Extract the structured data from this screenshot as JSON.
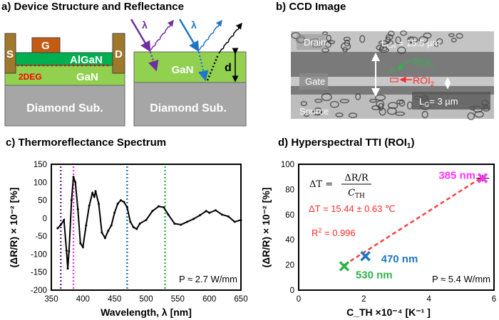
{
  "panels": {
    "a": {
      "title": "a) Device Structure and Reflectance",
      "source": "S",
      "gate": "G",
      "drain": "D",
      "algan": "AlGaN",
      "twodeg": "2DEG",
      "gan": "GaN",
      "substrate": "Diamond Sub.",
      "gan_right": "GaN",
      "substrate_right": "Diamond Sub.",
      "thickness": "d",
      "lambda": "λ"
    },
    "b": {
      "title": "b) CCD Image",
      "drain": "Drain",
      "gate": "Gate",
      "source": "Source",
      "lch_main": "L",
      "lch_sub": "CH",
      "lch_value": " = 15.5 µm",
      "roi1_main": "ROI",
      "roi1_sub": "1",
      "roi2_main": "ROI",
      "roi2_sub": "2",
      "lg_main": "L",
      "lg_sub": "G",
      "lg_value": "= 3 µm"
    },
    "c": {
      "title": "c) Thermoreflectance Spectrum",
      "annotation": "P ≈ 2.7 W/mm"
    },
    "d": {
      "title_main": "d) Hyperspectral TTI (ROI",
      "title_sub": "1",
      "title_end": ")",
      "eq_lhs": "ΔT =",
      "eq_num": "ΔR/R",
      "eq_den_main": "C",
      "eq_den_sub": "TH",
      "fit_result": "ΔT = 15.44 ± 0.63 ℃",
      "r2_main": "R",
      "r2_sup": "2",
      "r2_value": " = 0.996",
      "annotation": "P ≈ 5.4 W/mm"
    }
  },
  "colors": {
    "purple": "#7030a0",
    "magenta": "#ff33ff",
    "blue": "#1f77c4",
    "green": "#2db34a",
    "red": "#ff2a2a",
    "gan": "#92d050",
    "algan": "#00b050",
    "metal": "#a0782a",
    "gate": "#c55a11",
    "substrate": "#a6a6a6"
  },
  "chart_data": [
    {
      "type": "line",
      "title": "c) Thermoreflectance Spectrum",
      "xlabel": "Wavelength, λ [nm]",
      "ylabel": "(ΔR/R) × 10⁻² [%]",
      "xlim": [
        350,
        650
      ],
      "ylim": [
        -200,
        150
      ],
      "xticks": [
        "350",
        "400",
        "450",
        "500",
        "550",
        "600",
        "650"
      ],
      "yticks": [
        "150",
        "100",
        "50",
        "0",
        "-50",
        "-100",
        "-150",
        "-200"
      ],
      "series": [
        {
          "name": "spectrum",
          "x": [
            360,
            365,
            370,
            374,
            376,
            378,
            382,
            385,
            388,
            392,
            396,
            400,
            405,
            410,
            415,
            418,
            420,
            425,
            430,
            435,
            440,
            445,
            450,
            455,
            460,
            465,
            470,
            475,
            480,
            485,
            490,
            500,
            510,
            520,
            528,
            535,
            545,
            555,
            565,
            575,
            585,
            595,
            600,
            610,
            620,
            630,
            640,
            650
          ],
          "y": [
            -28,
            -18,
            -5,
            -90,
            -140,
            -92,
            50,
            115,
            100,
            25,
            -70,
            -80,
            -20,
            35,
            70,
            60,
            75,
            40,
            -40,
            -55,
            -35,
            -20,
            15,
            40,
            50,
            45,
            30,
            -10,
            -25,
            -30,
            -15,
            -5,
            20,
            33,
            30,
            10,
            -15,
            -18,
            -10,
            -2,
            8,
            20,
            15,
            22,
            10,
            5,
            -10,
            -5
          ]
        }
      ],
      "vlines": [
        {
          "x": 365,
          "color": "purple"
        },
        {
          "x": 385,
          "color": "magenta"
        },
        {
          "x": 470,
          "color": "blue"
        },
        {
          "x": 530,
          "color": "green"
        }
      ]
    },
    {
      "type": "scatter",
      "title": "d) Hyperspectral TTI (ROI1)",
      "xlabel": "C_TH ×10⁻⁴ [K⁻¹ ]",
      "ylabel": "(ΔR/R) × 10⁻² [%]",
      "xlim": [
        0,
        6
      ],
      "ylim": [
        0,
        100
      ],
      "xticks": [
        "0",
        "2",
        "4",
        "6"
      ],
      "yticks": [
        "100",
        "80",
        "60",
        "40",
        "20",
        "0"
      ],
      "points": [
        {
          "label": "385 nm",
          "x": 5.65,
          "y": 89,
          "color": "magenta"
        },
        {
          "label": "470 nm",
          "x": 2.05,
          "y": 27,
          "color": "blue"
        },
        {
          "label": "530 nm",
          "x": 1.4,
          "y": 19,
          "color": "green"
        }
      ],
      "fit": {
        "x": [
          1.4,
          5.65
        ],
        "y": [
          20,
          90
        ]
      }
    }
  ]
}
